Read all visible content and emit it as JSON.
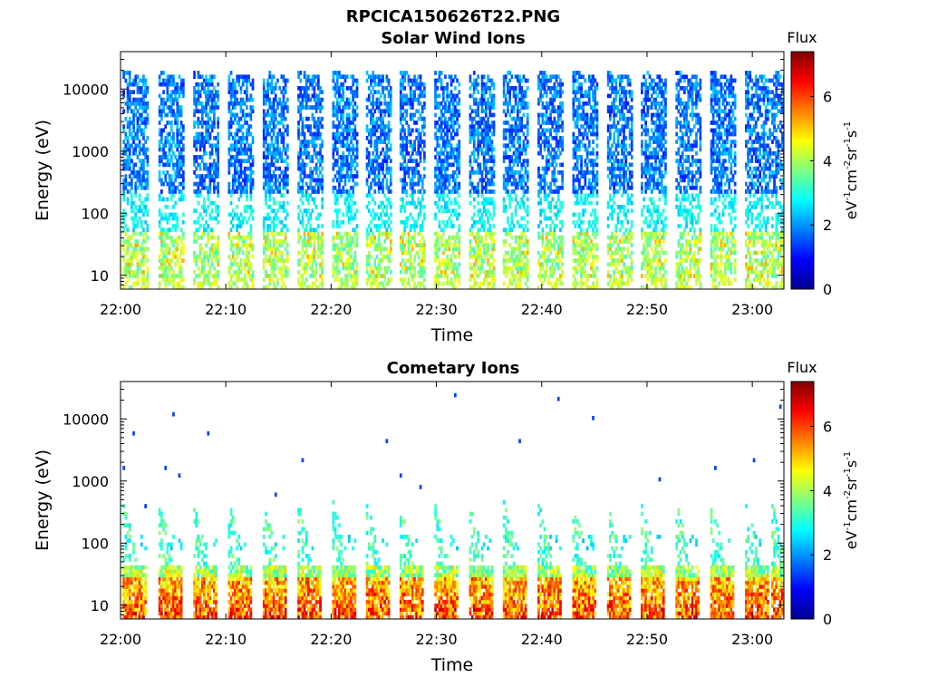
{
  "figure": {
    "title": "RPCICA150626T22.PNG"
  },
  "colors": {
    "colormap": [
      "#00008f",
      "#0000ff",
      "#0080ff",
      "#00ffff",
      "#80ff80",
      "#ffff00",
      "#ff8000",
      "#ff0000",
      "#800000"
    ]
  },
  "chart_data": [
    {
      "type": "heatmap",
      "title": "Solar Wind Ions",
      "xlabel": "Time",
      "ylabel": "Energy (eV)",
      "x_ticks": [
        "22:00",
        "22:10",
        "22:20",
        "22:30",
        "22:40",
        "22:50",
        "23:00"
      ],
      "x_range_minutes": [
        0,
        63
      ],
      "y_scale": "log",
      "y_ticks": [
        "10",
        "100",
        "1000",
        "10000"
      ],
      "ylim": [
        6,
        40000
      ],
      "colorbar": {
        "label": "Flux",
        "units": "eV-1cm-2sr-1s-1",
        "ticks": [
          "0",
          "2",
          "4",
          "6"
        ],
        "range": [
          0,
          7.4
        ]
      },
      "sweep_start_minutes": [
        0.2,
        3.6,
        6.9,
        10.2,
        13.5,
        16.8,
        20.1,
        23.3,
        26.5,
        29.8,
        33.1,
        36.3,
        39.6,
        42.9,
        46.2,
        49.4,
        52.7,
        56.0,
        59.3,
        61.8
      ],
      "population": "solar wind: broad 100 eV – 20 keV, flux 1–3 at high energies, 3–4.5 below 50 eV"
    },
    {
      "type": "heatmap",
      "title": "Cometary Ions",
      "xlabel": "Time",
      "ylabel": "Energy (eV)",
      "x_ticks": [
        "22:00",
        "22:10",
        "22:20",
        "22:30",
        "22:40",
        "22:50",
        "23:00"
      ],
      "x_range_minutes": [
        0,
        63
      ],
      "y_scale": "log",
      "y_ticks": [
        "10",
        "100",
        "1000",
        "10000"
      ],
      "ylim": [
        6,
        40000
      ],
      "colorbar": {
        "label": "Flux",
        "units": "eV-1cm-2sr-1s-1",
        "ticks": [
          "0",
          "2",
          "4",
          "6"
        ],
        "range": [
          0,
          7.4
        ]
      },
      "sweep_start_minutes": [
        0.2,
        3.6,
        6.9,
        10.2,
        13.5,
        16.8,
        20.1,
        23.3,
        26.5,
        29.8,
        33.1,
        36.3,
        39.6,
        42.9,
        46.2,
        49.4,
        52.7,
        56.0,
        59.3,
        61.8
      ],
      "population": "cometary: intense 6–40 eV (flux 5–7), tails up to ~500 eV, sparse points to ~20 keV"
    }
  ]
}
